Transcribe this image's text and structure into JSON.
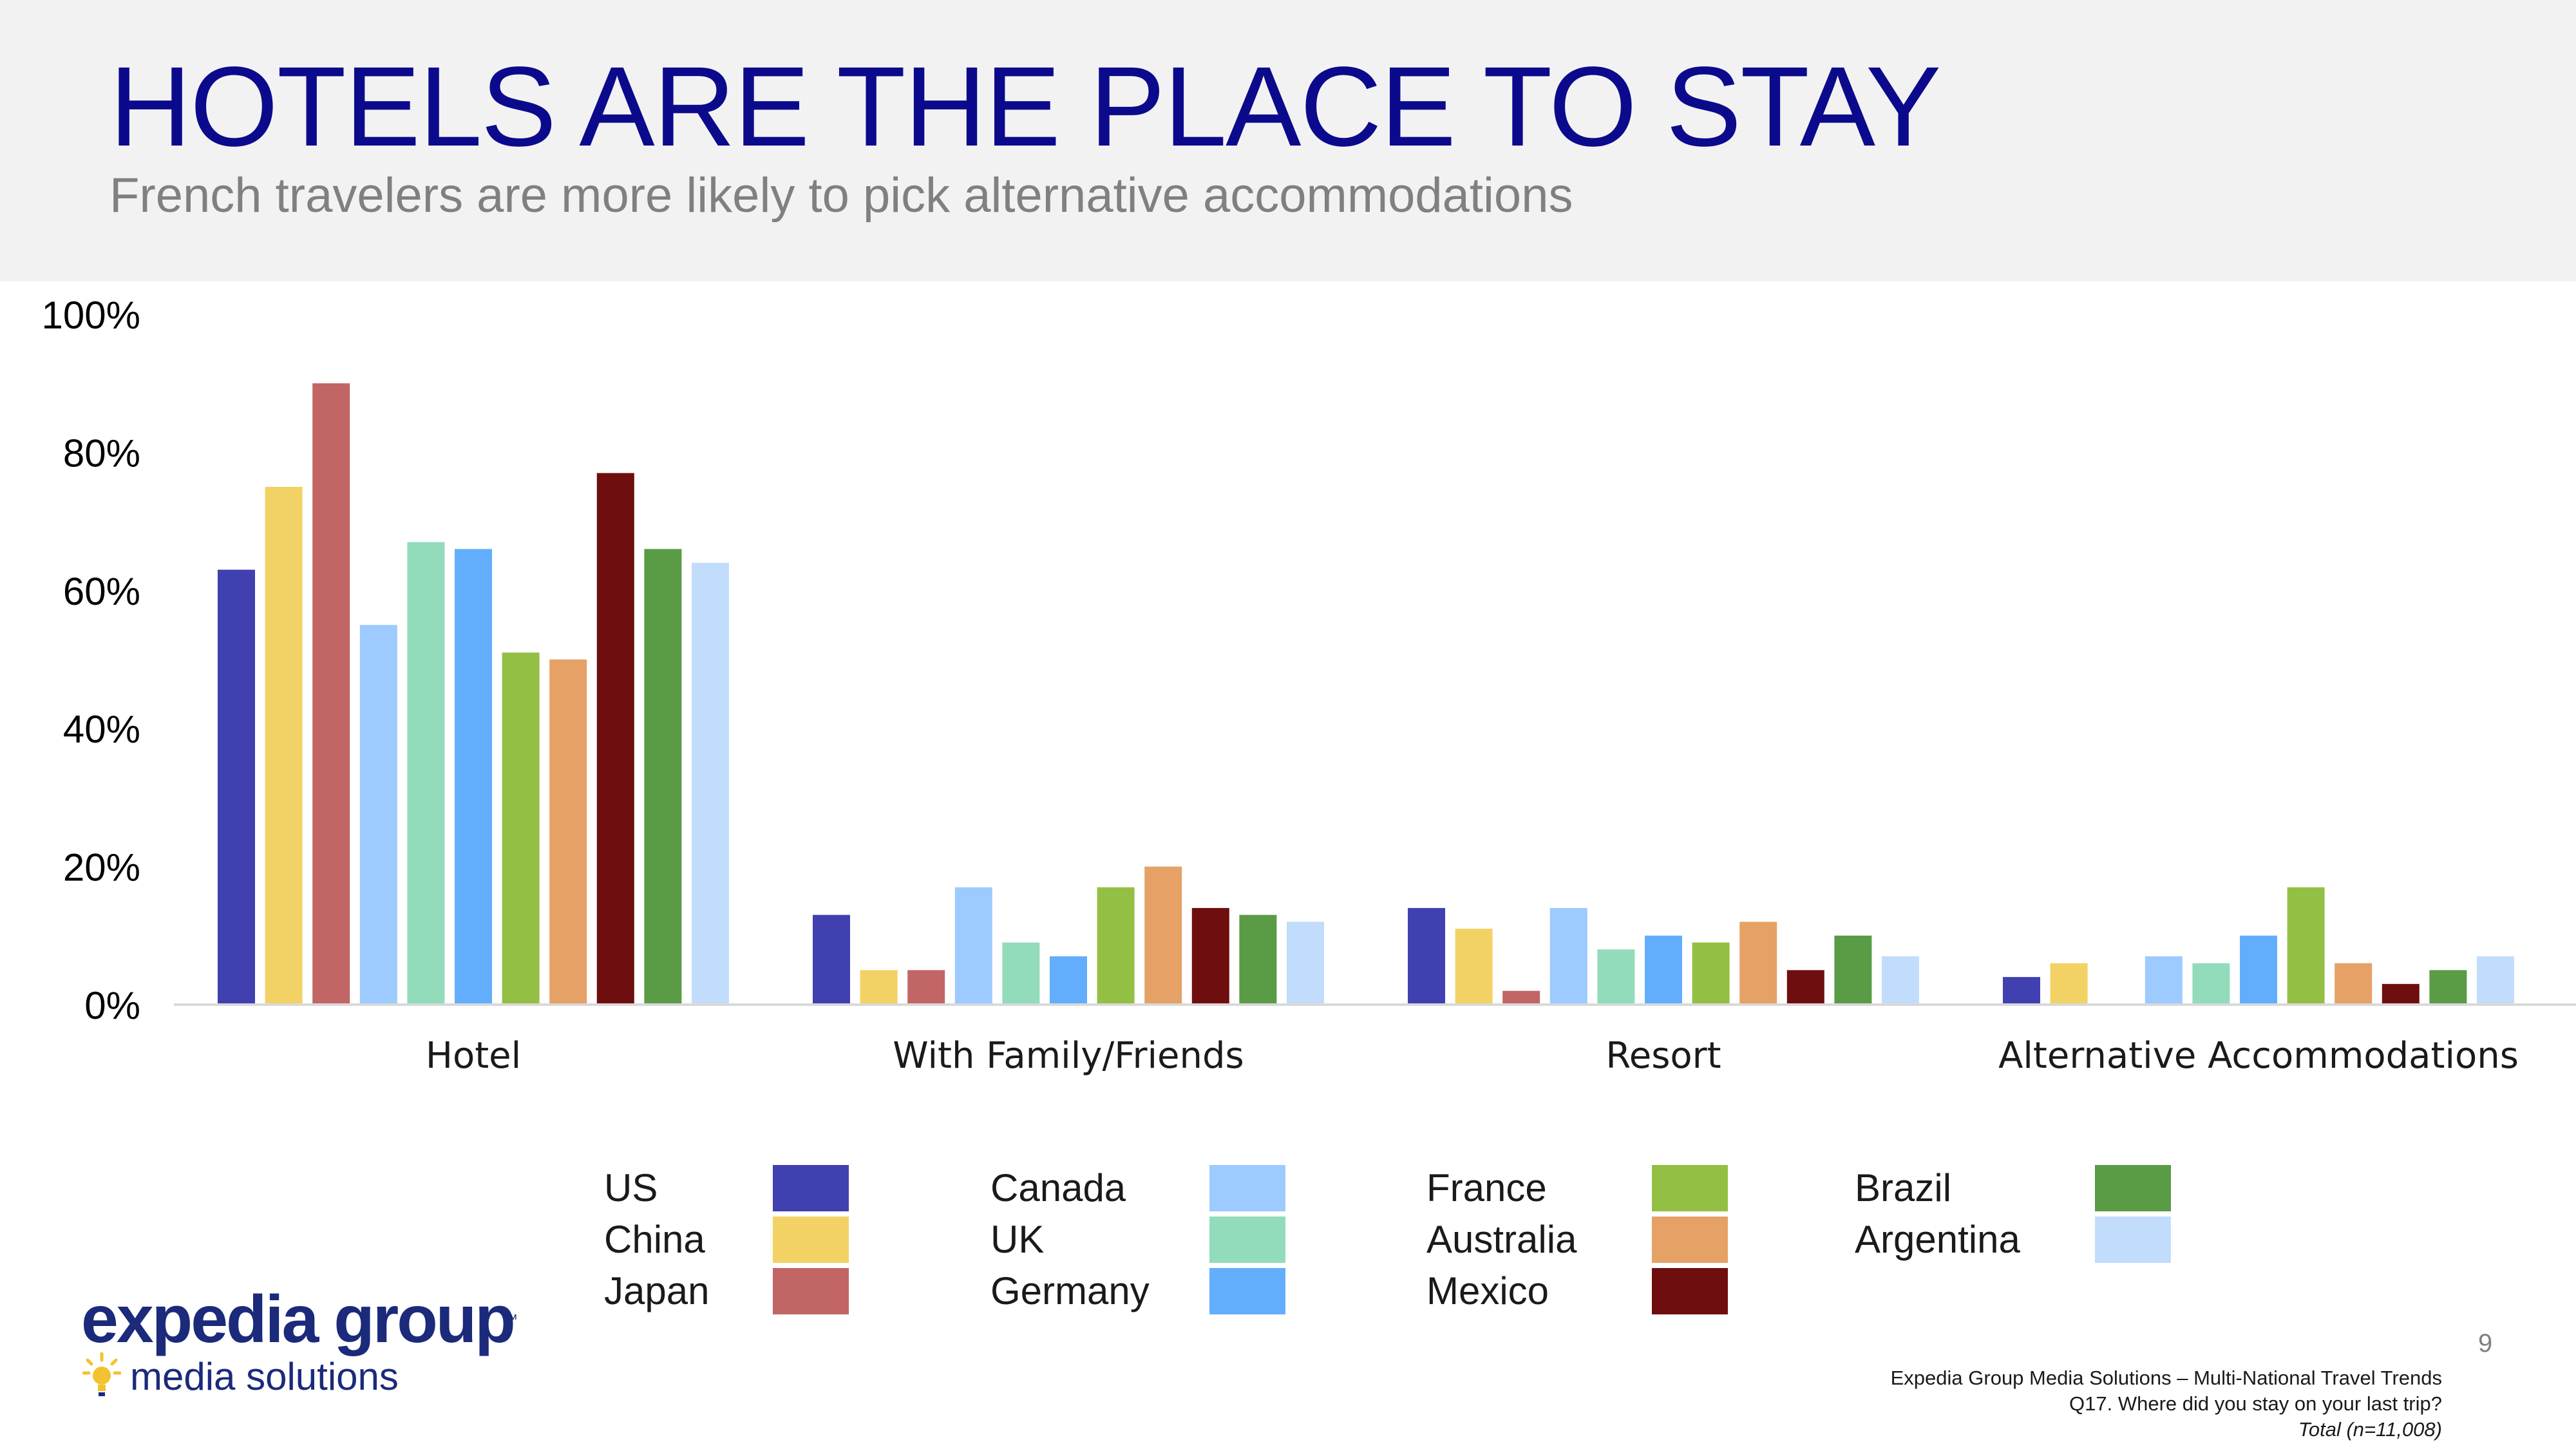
{
  "header": {
    "title": "HOTELS ARE THE PLACE TO STAY",
    "subtitle": "French travelers are more likely to pick alternative accommodations"
  },
  "chart_data": {
    "type": "bar",
    "title": "",
    "xlabel": "",
    "ylabel": "",
    "ylim": [
      0,
      100
    ],
    "yticks": [
      "0%",
      "20%",
      "40%",
      "60%",
      "80%",
      "100%"
    ],
    "grid": false,
    "legend_position": "bottom",
    "categories": [
      "Hotel",
      "With Family/Friends",
      "Resort",
      "Alternative Accommodations"
    ],
    "series": [
      {
        "name": "US",
        "color": "#4040b0",
        "values": [
          63,
          13,
          14,
          4
        ]
      },
      {
        "name": "China",
        "color": "#f2d264",
        "values": [
          75,
          5,
          11,
          6
        ]
      },
      {
        "name": "Japan",
        "color": "#c26565",
        "values": [
          90,
          5,
          2,
          0
        ]
      },
      {
        "name": "Canada",
        "color": "#9dcaff",
        "values": [
          55,
          17,
          14,
          7
        ]
      },
      {
        "name": "UK",
        "color": "#92dcbb",
        "values": [
          67,
          9,
          8,
          6
        ]
      },
      {
        "name": "Germany",
        "color": "#62aefc",
        "values": [
          66,
          7,
          10,
          10
        ]
      },
      {
        "name": "France",
        "color": "#93c044",
        "values": [
          51,
          17,
          9,
          17
        ]
      },
      {
        "name": "Australia",
        "color": "#e6a166",
        "values": [
          50,
          20,
          12,
          6
        ]
      },
      {
        "name": "Mexico",
        "color": "#6f0e0e",
        "values": [
          77,
          14,
          5,
          3
        ]
      },
      {
        "name": "Brazil",
        "color": "#5a9b46",
        "values": [
          66,
          13,
          10,
          5
        ]
      },
      {
        "name": "Argentina",
        "color": "#c2dcfc",
        "values": [
          64,
          12,
          7,
          7
        ]
      }
    ]
  },
  "logo": {
    "brand": "expedia group",
    "tm": "™",
    "tagline": "media solutions",
    "icon": "lightbulb-icon"
  },
  "footer": {
    "page_number": "9",
    "source": "Expedia Group Media Solutions – Multi-National Travel Trends",
    "question": "Q17. Where did you stay on your last trip?",
    "note": "Total (n=11,008)"
  }
}
